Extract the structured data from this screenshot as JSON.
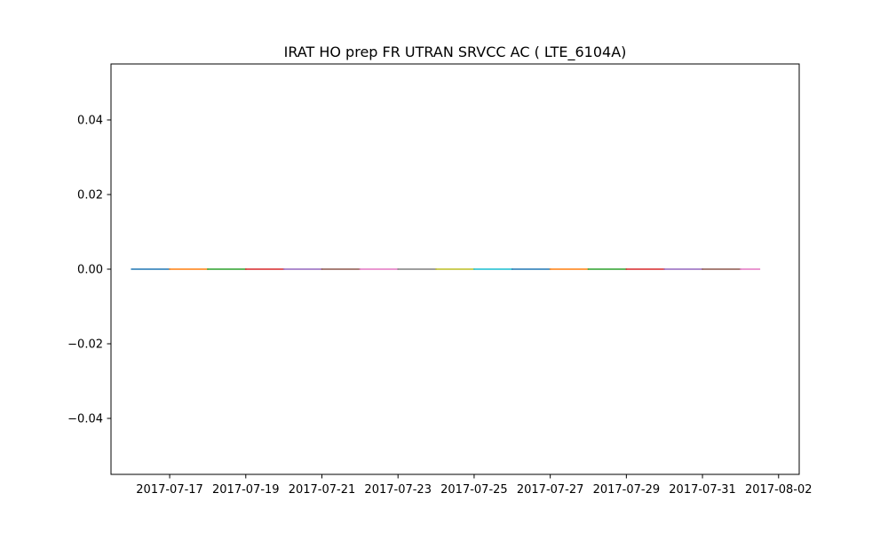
{
  "chart_data": {
    "type": "line",
    "title": "IRAT HO prep FR UTRAN SRVCC AC ( LTE_6104A)",
    "xlabel": "",
    "ylabel": "",
    "x_axis": "date",
    "xlim": [
      "2017-07-15T11:00",
      "2017-08-02T13:00"
    ],
    "ylim": [
      -0.055,
      0.055
    ],
    "xticks": [
      "2017-07-17",
      "2017-07-19",
      "2017-07-21",
      "2017-07-23",
      "2017-07-25",
      "2017-07-27",
      "2017-07-29",
      "2017-07-31",
      "2017-08-02"
    ],
    "yticks": [
      {
        "value": 0.04,
        "label": "0.04"
      },
      {
        "value": 0.02,
        "label": "0.02"
      },
      {
        "value": 0.0,
        "label": "0.00"
      },
      {
        "value": -0.02,
        "label": "−0.02"
      },
      {
        "value": -0.04,
        "label": "−0.04"
      }
    ],
    "grid": false,
    "legend": "none",
    "series": [
      {
        "x": [
          "2017-07-16",
          "2017-07-17"
        ],
        "y": [
          0,
          0
        ],
        "color": "#1f77b4"
      },
      {
        "x": [
          "2017-07-17",
          "2017-07-18"
        ],
        "y": [
          0,
          0
        ],
        "color": "#ff7f0e"
      },
      {
        "x": [
          "2017-07-18",
          "2017-07-19"
        ],
        "y": [
          0,
          0
        ],
        "color": "#2ca02c"
      },
      {
        "x": [
          "2017-07-19",
          "2017-07-20"
        ],
        "y": [
          0,
          0
        ],
        "color": "#d62728"
      },
      {
        "x": [
          "2017-07-20",
          "2017-07-21"
        ],
        "y": [
          0,
          0
        ],
        "color": "#9467bd"
      },
      {
        "x": [
          "2017-07-21",
          "2017-07-22"
        ],
        "y": [
          0,
          0
        ],
        "color": "#8c564b"
      },
      {
        "x": [
          "2017-07-22",
          "2017-07-23"
        ],
        "y": [
          0,
          0
        ],
        "color": "#e377c2"
      },
      {
        "x": [
          "2017-07-23",
          "2017-07-24"
        ],
        "y": [
          0,
          0
        ],
        "color": "#7f7f7f"
      },
      {
        "x": [
          "2017-07-24",
          "2017-07-25"
        ],
        "y": [
          0,
          0
        ],
        "color": "#bcbd22"
      },
      {
        "x": [
          "2017-07-25",
          "2017-07-26"
        ],
        "y": [
          0,
          0
        ],
        "color": "#17becf"
      },
      {
        "x": [
          "2017-07-26",
          "2017-07-27"
        ],
        "y": [
          0,
          0
        ],
        "color": "#1f77b4"
      },
      {
        "x": [
          "2017-07-27",
          "2017-07-28"
        ],
        "y": [
          0,
          0
        ],
        "color": "#ff7f0e"
      },
      {
        "x": [
          "2017-07-28",
          "2017-07-29"
        ],
        "y": [
          0,
          0
        ],
        "color": "#2ca02c"
      },
      {
        "x": [
          "2017-07-29",
          "2017-07-30"
        ],
        "y": [
          0,
          0
        ],
        "color": "#d62728"
      },
      {
        "x": [
          "2017-07-30",
          "2017-07-31"
        ],
        "y": [
          0,
          0
        ],
        "color": "#9467bd"
      },
      {
        "x": [
          "2017-07-31",
          "2017-08-01"
        ],
        "y": [
          0,
          0
        ],
        "color": "#8c564b"
      },
      {
        "x": [
          "2017-08-01",
          "2017-08-01T12:00"
        ],
        "y": [
          0,
          0
        ],
        "color": "#e377c2"
      }
    ]
  }
}
